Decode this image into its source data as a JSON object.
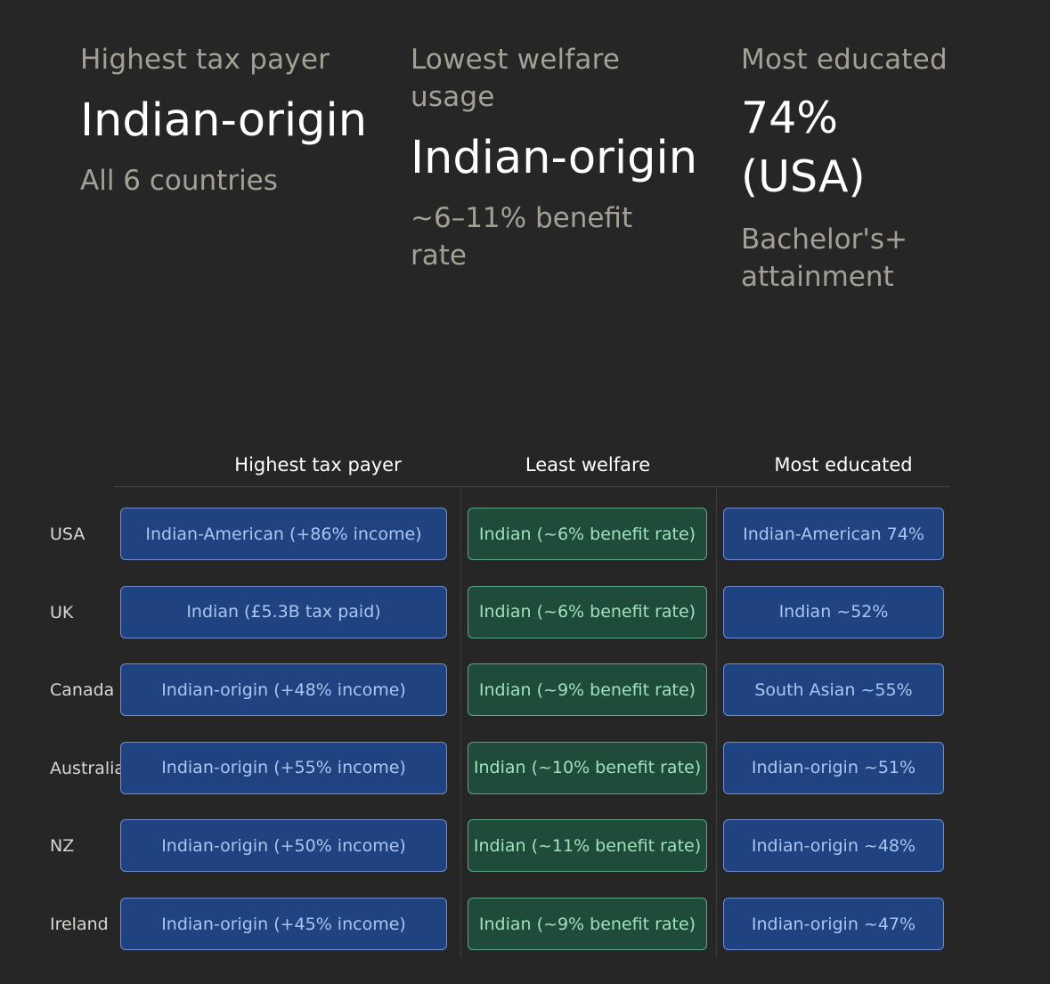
{
  "stats": [
    {
      "label": "Highest tax payer",
      "value": "Indian-origin",
      "sub": "All 6 countries"
    },
    {
      "label": "Lowest welfare usage",
      "value": "Indian-origin",
      "sub": "~6–11% benefit rate"
    },
    {
      "label": "Most educated",
      "value": "74% (USA)",
      "sub": "Bachelor's+ attainment"
    }
  ],
  "chart_data": {
    "type": "table",
    "columns": [
      "Highest tax payer",
      "Least welfare",
      "Most educated"
    ],
    "rows": [
      {
        "label": "USA",
        "cells": [
          "Indian-American (+86% income)",
          "Indian (~6% benefit rate)",
          "Indian-American 74%"
        ]
      },
      {
        "label": "UK",
        "cells": [
          "Indian (£5.3B tax paid)",
          "Indian (~6% benefit rate)",
          "Indian ~52%"
        ]
      },
      {
        "label": "Canada",
        "cells": [
          "Indian-origin (+48% income)",
          "Indian (~9% benefit rate)",
          "South Asian ~55%"
        ]
      },
      {
        "label": "Australia",
        "cells": [
          "Indian-origin (+55% income)",
          "Indian (~10% benefit rate)",
          "Indian-origin ~51%"
        ]
      },
      {
        "label": "NZ",
        "cells": [
          "Indian-origin (+50% income)",
          "Indian (~11% benefit rate)",
          "Indian-origin ~48%"
        ]
      },
      {
        "label": "Ireland",
        "cells": [
          "Indian-origin (+45% income)",
          "Indian (~9% benefit rate)",
          "Indian-origin ~47%"
        ]
      }
    ],
    "colors": {
      "tax_fill": "#1f4380",
      "welfare_fill": "#1f4b3b",
      "education_fill": "#1f4380"
    }
  }
}
